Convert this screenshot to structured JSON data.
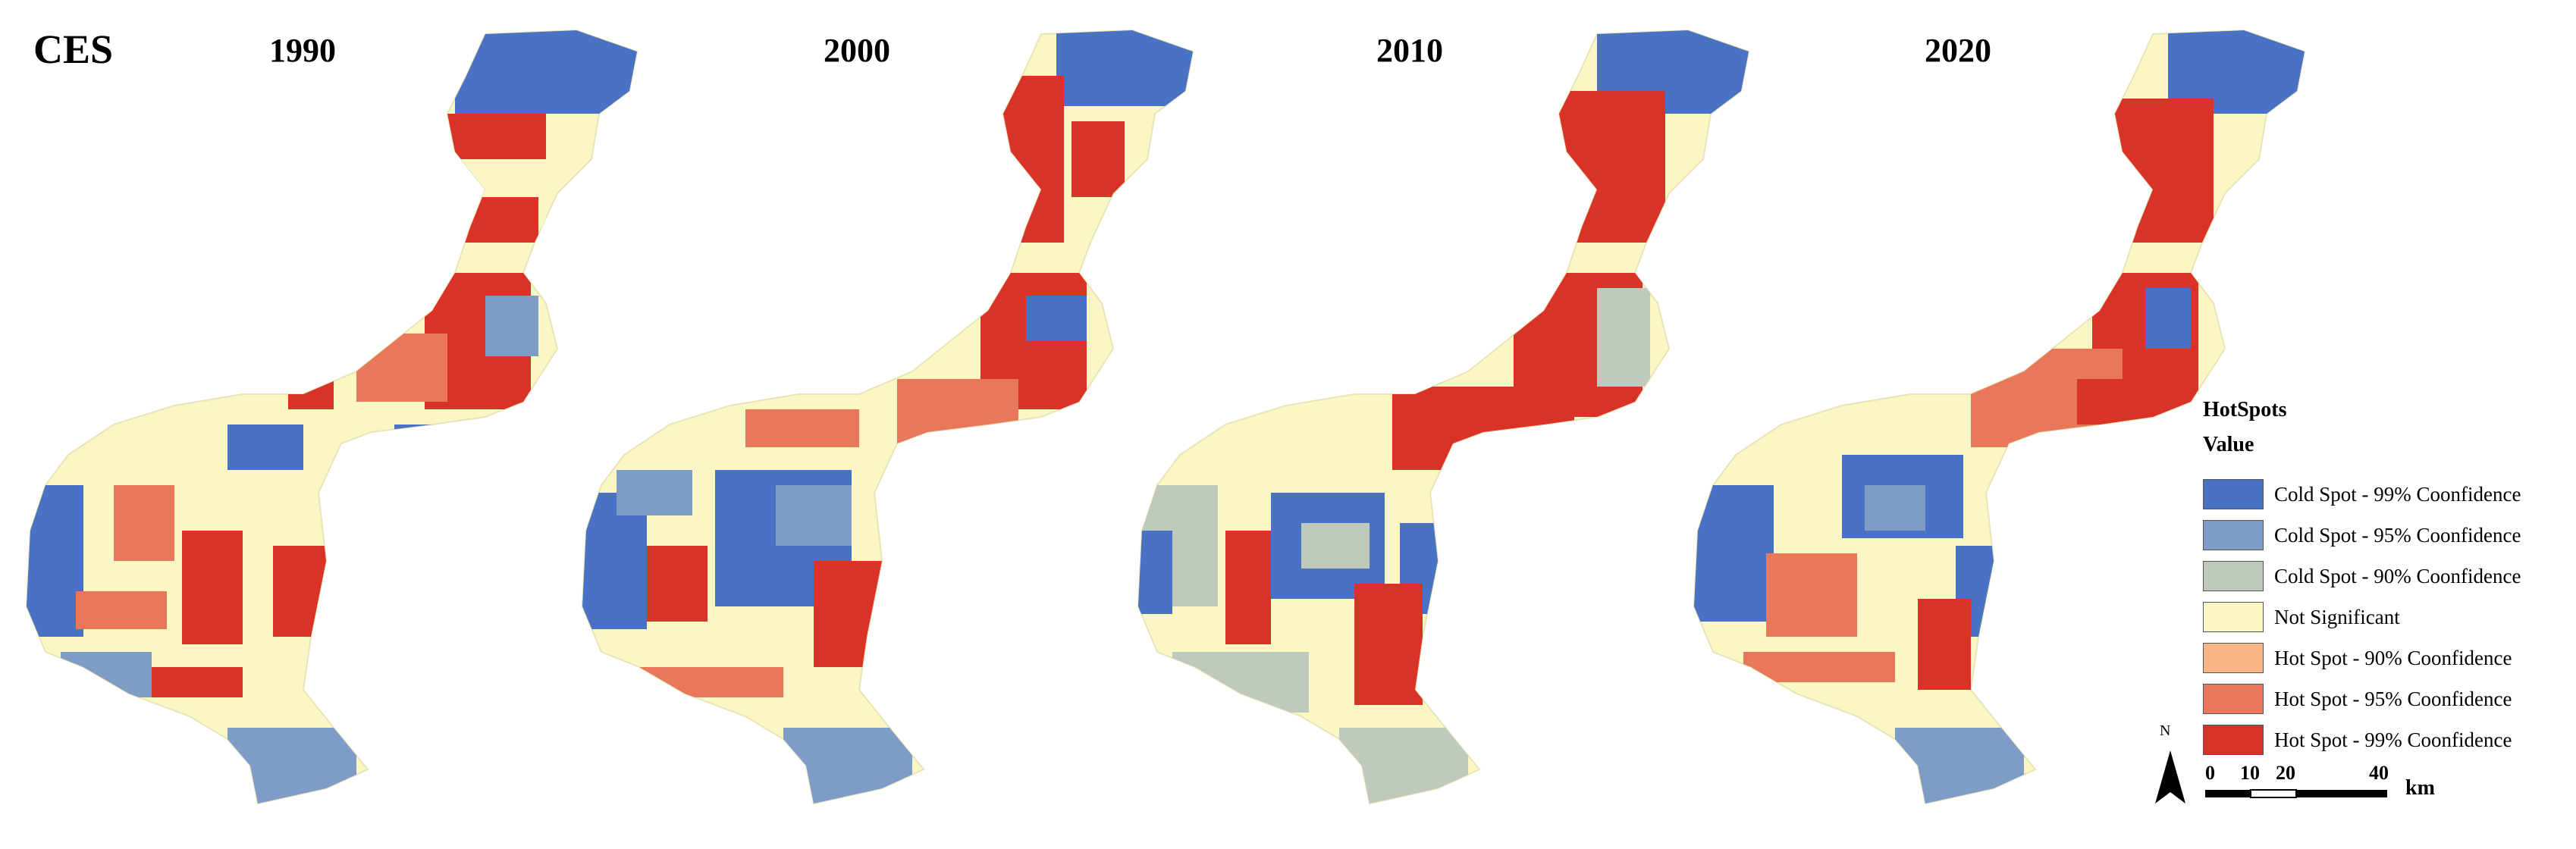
{
  "main_label": "CES",
  "panels": [
    {
      "year": "1990"
    },
    {
      "year": "2000"
    },
    {
      "year": "2010"
    },
    {
      "year": "2020"
    }
  ],
  "legend": {
    "title": "HotSpots",
    "subtitle": "Value",
    "items": [
      {
        "label": "Cold Spot - 99% Coonfidence",
        "color": "#4a72c4"
      },
      {
        "label": "Cold Spot - 95% Coonfidence",
        "color": "#7f9cc7"
      },
      {
        "label": "Cold Spot - 90% Coonfidence",
        "color": "#bfcabd"
      },
      {
        "label": "Not Significant",
        "color": "#fbf7c4"
      },
      {
        "label": "Hot Spot - 90% Coonfidence",
        "color": "#f7b684"
      },
      {
        "label": "Hot Spot - 95% Coonfidence",
        "color": "#e9775a"
      },
      {
        "label": "Hot Spot - 99% Coonfidence",
        "color": "#d93328"
      }
    ]
  },
  "north_label": "N",
  "scale": {
    "ticks": [
      "0",
      "10",
      "20",
      "40"
    ],
    "unit": "km"
  }
}
